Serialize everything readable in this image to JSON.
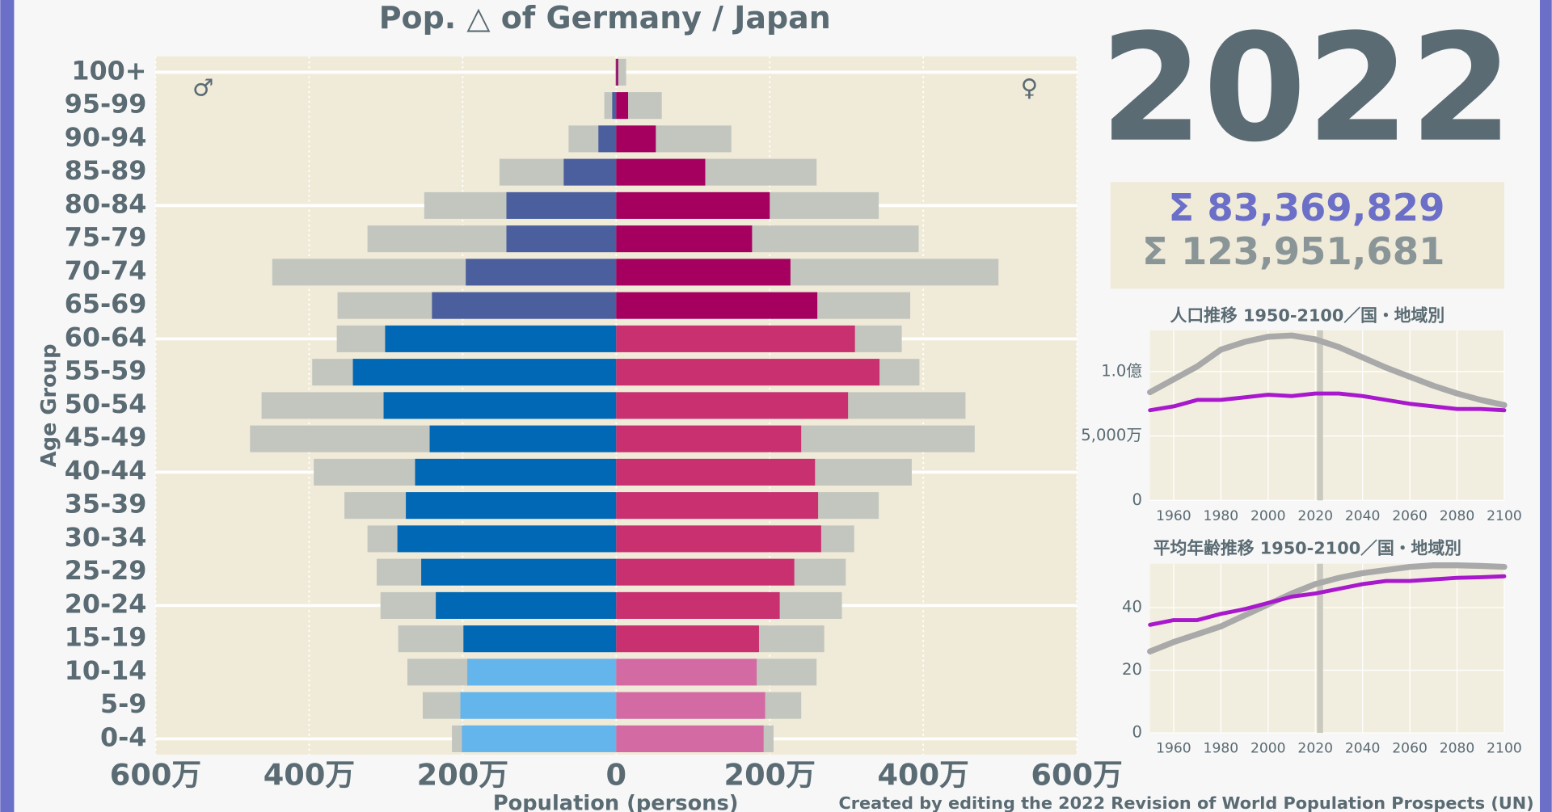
{
  "header": {
    "year": "2022",
    "totals": [
      "Σ  83,369,829",
      "Σ 123,951,681"
    ]
  },
  "credit": "Created by editing the 2022 Revision of World Population Prospects (UN)",
  "chart_data": [
    {
      "type": "bar",
      "orientation": "horizontal",
      "title": "Pop. △ of Germany / Japan",
      "xlabel": "Population (persons)",
      "ylabel": "Age Group",
      "annotations": [
        "♂",
        "♀"
      ],
      "categories": [
        "0-4",
        "5-9",
        "10-14",
        "15-19",
        "20-24",
        "25-29",
        "30-34",
        "35-39",
        "40-44",
        "45-49",
        "50-54",
        "55-59",
        "60-64",
        "65-69",
        "70-74",
        "75-79",
        "80-84",
        "85-89",
        "90-94",
        "95-99",
        "100+"
      ],
      "xlim": [
        -6000000,
        6000000
      ],
      "xticks": [
        {
          "value": -6000000,
          "label": "600万"
        },
        {
          "value": -4000000,
          "label": "400万"
        },
        {
          "value": -2000000,
          "label": "200万"
        },
        0,
        {
          "value": 2000000,
          "label": "200万"
        },
        {
          "value": 4000000,
          "label": "400万"
        },
        {
          "value": 6000000,
          "label": "600万"
        }
      ],
      "grid": true,
      "series": [
        {
          "color": "#c3c6bf",
          "values": [
            -2140000,
            -2520000,
            -2720000,
            -2840000,
            -3070000,
            -3120000,
            -3240000,
            -3540000,
            -3940000,
            -4770000,
            -4620000,
            -3960000,
            -3640000,
            -3630000,
            -4480000,
            -3240000,
            -2500000,
            -1520000,
            -620000,
            -155000,
            -10000
          ]
        },
        {
          "color": "#c3c6bf",
          "values": [
            2050000,
            2410000,
            2610000,
            2710000,
            2940000,
            2990000,
            3100000,
            3420000,
            3850000,
            4670000,
            4550000,
            3950000,
            3720000,
            3830000,
            4980000,
            3940000,
            3420000,
            2610000,
            1500000,
            594000,
            129000
          ]
        },
        {
          "colors": [
            "#64b5ec",
            "#64b5ec",
            "#64b5ec",
            "#0068b4",
            "#0068b4",
            "#0068b4",
            "#0068b4",
            "#0068b4",
            "#0068b4",
            "#0068b4",
            "#0068b4",
            "#0068b4",
            "#0068b4",
            "#4b5f9e",
            "#4b5f9e",
            "#4b5f9e",
            "#4b5f9e",
            "#4b5f9e",
            "#4b5f9e",
            "#4b5f9e",
            "#4b5f9e"
          ],
          "values": [
            -2010000,
            -2030000,
            -1940000,
            -1990000,
            -2350000,
            -2540000,
            -2850000,
            -2740000,
            -2620000,
            -2430000,
            -3030000,
            -3430000,
            -3010000,
            -2400000,
            -1960000,
            -1430000,
            -1430000,
            -684000,
            -232000,
            -52000,
            -5000
          ]
        },
        {
          "colors": [
            "#d36aa3",
            "#d36aa3",
            "#d36aa3",
            "#c8306f",
            "#c8306f",
            "#c8306f",
            "#c8306f",
            "#c8306f",
            "#c8306f",
            "#c8306f",
            "#c8306f",
            "#c8306f",
            "#c8306f",
            "#a5005f",
            "#a5005f",
            "#a5005f",
            "#a5005f",
            "#a5005f",
            "#a5005f",
            "#a5005f",
            "#a5005f"
          ],
          "values": [
            1920000,
            1940000,
            1830000,
            1860000,
            2130000,
            2320000,
            2670000,
            2630000,
            2590000,
            2410000,
            3020000,
            3430000,
            3110000,
            2620000,
            2270000,
            1770000,
            2000000,
            1160000,
            516000,
            155000,
            26000
          ]
        }
      ]
    },
    {
      "type": "line",
      "title": "人口推移 1950-2100／国・地域別",
      "x": [
        1950,
        1960,
        1970,
        1980,
        1990,
        2000,
        2010,
        2020,
        2030,
        2040,
        2050,
        2060,
        2070,
        2080,
        2090,
        2100
      ],
      "xlim": [
        1950,
        2100
      ],
      "xticks": [
        1960,
        1980,
        2000,
        2020,
        2040,
        2060,
        2080,
        2100
      ],
      "ylim": [
        0,
        132000000
      ],
      "yticks": [
        0,
        {
          "value": 50000000,
          "label": "5,000万"
        },
        {
          "value": 100000000,
          "label": "1.0億"
        }
      ],
      "highlight_x": 2022,
      "grid": true,
      "series": [
        {
          "color": "#a9a9a9",
          "values": [
            84000000,
            94000000,
            104000000,
            117000000,
            123000000,
            127000000,
            128000000,
            125000000,
            119000000,
            111000000,
            103000000,
            96000000,
            89000000,
            83000000,
            78000000,
            74000000
          ]
        },
        {
          "color": "#a818cc",
          "values": [
            70000000,
            73000000,
            78000000,
            78000000,
            80000000,
            82000000,
            81000000,
            83000000,
            83000000,
            81000000,
            78000000,
            75000000,
            73000000,
            71000000,
            71000000,
            70000000
          ]
        }
      ]
    },
    {
      "type": "line",
      "title": "平均年齢推移 1950-2100／国・地域別",
      "x": [
        1950,
        1960,
        1970,
        1980,
        1990,
        2000,
        2010,
        2020,
        2030,
        2040,
        2050,
        2060,
        2070,
        2080,
        2090,
        2100
      ],
      "xlim": [
        1950,
        2100
      ],
      "xticks": [
        1960,
        1980,
        2000,
        2020,
        2040,
        2060,
        2080,
        2100
      ],
      "ylim": [
        0,
        54
      ],
      "yticks": [
        0,
        20,
        40
      ],
      "highlight_x": 2022,
      "grid": true,
      "series": [
        {
          "color": "#a9a9a9",
          "values": [
            26,
            29,
            31.5,
            34,
            37.5,
            41,
            44.5,
            47.5,
            49.5,
            51,
            52,
            53,
            53.5,
            53.5,
            53.3,
            53
          ]
        },
        {
          "color": "#a818cc",
          "values": [
            34.5,
            36,
            36,
            38,
            39.5,
            41.5,
            43.5,
            44.5,
            46,
            47.5,
            48.5,
            48.5,
            49,
            49.5,
            49.7,
            50
          ]
        }
      ]
    }
  ]
}
